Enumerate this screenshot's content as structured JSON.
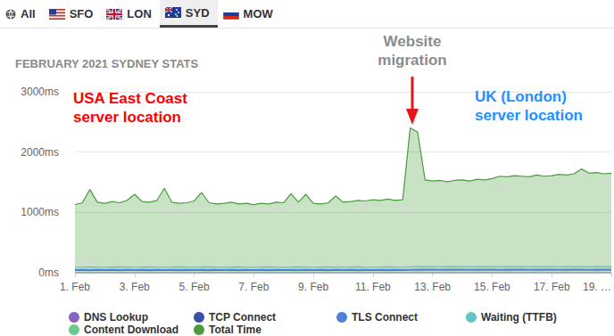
{
  "tabs": [
    "All",
    "SFO",
    "LON",
    "SYD",
    "MOW"
  ],
  "active_tab": "SYD",
  "chart_data": {
    "type": "line",
    "title": "FEBRUARY 2021 SYDNEY STATS",
    "x": [
      1,
      1.25,
      1.5,
      1.75,
      2,
      2.25,
      2.5,
      2.75,
      3,
      3.25,
      3.5,
      3.75,
      4,
      4.25,
      4.5,
      4.75,
      5,
      5.25,
      5.5,
      5.75,
      6,
      6.25,
      6.5,
      6.75,
      7,
      7.25,
      7.5,
      7.75,
      8,
      8.25,
      8.5,
      8.75,
      9,
      9.25,
      9.5,
      9.75,
      10,
      10.25,
      10.5,
      10.75,
      11,
      11.25,
      11.5,
      11.75,
      12,
      12.25,
      12.5,
      12.75,
      13,
      13.25,
      13.5,
      13.75,
      14,
      14.25,
      14.5,
      14.75,
      15,
      15.25,
      15.5,
      15.75,
      16,
      16.25,
      16.5,
      16.75,
      17,
      17.25,
      17.5,
      17.75,
      18,
      18.25,
      18.5,
      18.75,
      19
    ],
    "xlim": [
      1,
      19
    ],
    "xticks": [
      {
        "value": 1,
        "label": "1. Feb"
      },
      {
        "value": 3,
        "label": "3. Feb"
      },
      {
        "value": 5,
        "label": "5. Feb"
      },
      {
        "value": 7,
        "label": "7. Feb"
      },
      {
        "value": 9,
        "label": "9. Feb"
      },
      {
        "value": 11,
        "label": "11. Feb"
      },
      {
        "value": 13,
        "label": "13. Feb"
      },
      {
        "value": 15,
        "label": "15. Feb"
      },
      {
        "value": 17,
        "label": "17. Feb"
      },
      {
        "value": 19,
        "label": "19. …"
      }
    ],
    "ylim": [
      0,
      3000
    ],
    "yticks": [
      {
        "value": 0,
        "label": "0ms"
      },
      {
        "value": 1000,
        "label": "1000ms"
      },
      {
        "value": 2000,
        "label": "2000ms"
      },
      {
        "value": 3000,
        "label": "3000ms"
      }
    ],
    "grid": true,
    "legend": "bottom",
    "annotations": [
      {
        "text": "USA East Coast\nserver location",
        "color": "#ff0000"
      },
      {
        "text": "Website\nmigration",
        "color": "#8c8c8c"
      },
      {
        "text": "UK (London)\nserver location",
        "color": "#1e90ff"
      }
    ],
    "series": [
      {
        "name": "DNS Lookup",
        "color": "#8a62c4",
        "type": "line",
        "values": [
          3,
          3,
          4,
          3,
          3,
          3,
          4,
          3,
          3,
          3,
          4,
          3,
          3,
          3,
          4,
          3,
          3,
          3,
          4,
          3,
          3,
          3,
          4,
          3,
          3,
          3,
          4,
          3,
          3,
          3,
          4,
          3,
          3,
          3,
          4,
          3,
          3,
          3,
          4,
          3,
          3,
          3,
          4,
          3,
          3,
          3,
          4,
          3,
          3,
          3,
          4,
          3,
          3,
          3,
          4,
          3,
          3,
          3,
          4,
          3,
          3,
          3,
          4,
          3,
          3,
          3,
          4,
          3,
          3,
          3,
          4,
          3,
          3
        ]
      },
      {
        "name": "TCP Connect",
        "color": "#3e4da8",
        "type": "line",
        "values": [
          45,
          46,
          44,
          45,
          45,
          46,
          44,
          45,
          45,
          46,
          44,
          45,
          45,
          46,
          44,
          45,
          45,
          46,
          44,
          45,
          45,
          46,
          44,
          45,
          45,
          46,
          44,
          45,
          45,
          46,
          44,
          45,
          45,
          46,
          44,
          45,
          45,
          46,
          44,
          45,
          45,
          46,
          44,
          45,
          45,
          47,
          49,
          48,
          48,
          47,
          49,
          48,
          48,
          47,
          49,
          48,
          48,
          47,
          49,
          48,
          48,
          47,
          49,
          48,
          48,
          47,
          49,
          48,
          48,
          47,
          49,
          48,
          48
        ]
      },
      {
        "name": "TLS Connect",
        "color": "#4d82d6",
        "type": "line",
        "values": [
          50,
          52,
          49,
          51,
          50,
          52,
          49,
          51,
          50,
          52,
          49,
          51,
          50,
          52,
          49,
          51,
          50,
          52,
          49,
          51,
          50,
          52,
          49,
          51,
          50,
          52,
          49,
          51,
          50,
          52,
          49,
          51,
          50,
          52,
          49,
          51,
          50,
          52,
          49,
          51,
          50,
          52,
          49,
          51,
          50,
          54,
          56,
          55,
          55,
          54,
          56,
          55,
          55,
          54,
          56,
          55,
          55,
          54,
          56,
          55,
          55,
          54,
          56,
          55,
          55,
          54,
          56,
          55,
          55,
          54,
          56,
          55,
          55
        ]
      },
      {
        "name": "Waiting (TTFB)",
        "color": "#62c6c4",
        "type": "line",
        "values": [
          90,
          92,
          95,
          91,
          90,
          92,
          95,
          91,
          90,
          92,
          95,
          91,
          90,
          92,
          95,
          91,
          90,
          92,
          95,
          91,
          90,
          92,
          95,
          91,
          90,
          92,
          95,
          91,
          90,
          92,
          95,
          91,
          90,
          92,
          95,
          91,
          90,
          92,
          95,
          91,
          90,
          92,
          95,
          91,
          90,
          98,
          102,
          99,
          100,
          98,
          102,
          99,
          100,
          98,
          102,
          99,
          100,
          98,
          102,
          99,
          100,
          98,
          102,
          99,
          100,
          98,
          102,
          99,
          100,
          98,
          102,
          99,
          100
        ]
      },
      {
        "name": "Content Download",
        "color": "#6cc98e",
        "type": "line",
        "values": [
          6,
          5,
          7,
          6,
          6,
          5,
          7,
          6,
          6,
          5,
          7,
          6,
          6,
          5,
          7,
          6,
          6,
          5,
          7,
          6,
          6,
          5,
          7,
          6,
          6,
          5,
          7,
          6,
          6,
          5,
          7,
          6,
          6,
          5,
          7,
          6,
          6,
          5,
          7,
          6,
          6,
          5,
          7,
          6,
          6,
          5,
          7,
          6,
          6,
          5,
          7,
          6,
          6,
          5,
          7,
          6,
          6,
          5,
          7,
          6,
          6,
          5,
          7,
          6,
          6,
          5,
          7,
          6,
          6,
          5,
          7,
          6,
          6
        ]
      },
      {
        "name": "Total Time",
        "color": "#4b9b3e",
        "type": "area",
        "values": [
          1130,
          1160,
          1380,
          1170,
          1150,
          1180,
          1160,
          1200,
          1300,
          1180,
          1170,
          1200,
          1400,
          1170,
          1150,
          1160,
          1190,
          1330,
          1160,
          1140,
          1150,
          1170,
          1140,
          1150,
          1130,
          1150,
          1140,
          1170,
          1160,
          1310,
          1170,
          1300,
          1150,
          1140,
          1160,
          1270,
          1170,
          1180,
          1200,
          1190,
          1210,
          1200,
          1220,
          1200,
          1210,
          2400,
          2330,
          1540,
          1520,
          1530,
          1510,
          1530,
          1540,
          1520,
          1550,
          1540,
          1560,
          1600,
          1590,
          1610,
          1600,
          1590,
          1620,
          1600,
          1610,
          1630,
          1620,
          1640,
          1720,
          1650,
          1660,
          1640,
          1650
        ]
      }
    ]
  }
}
